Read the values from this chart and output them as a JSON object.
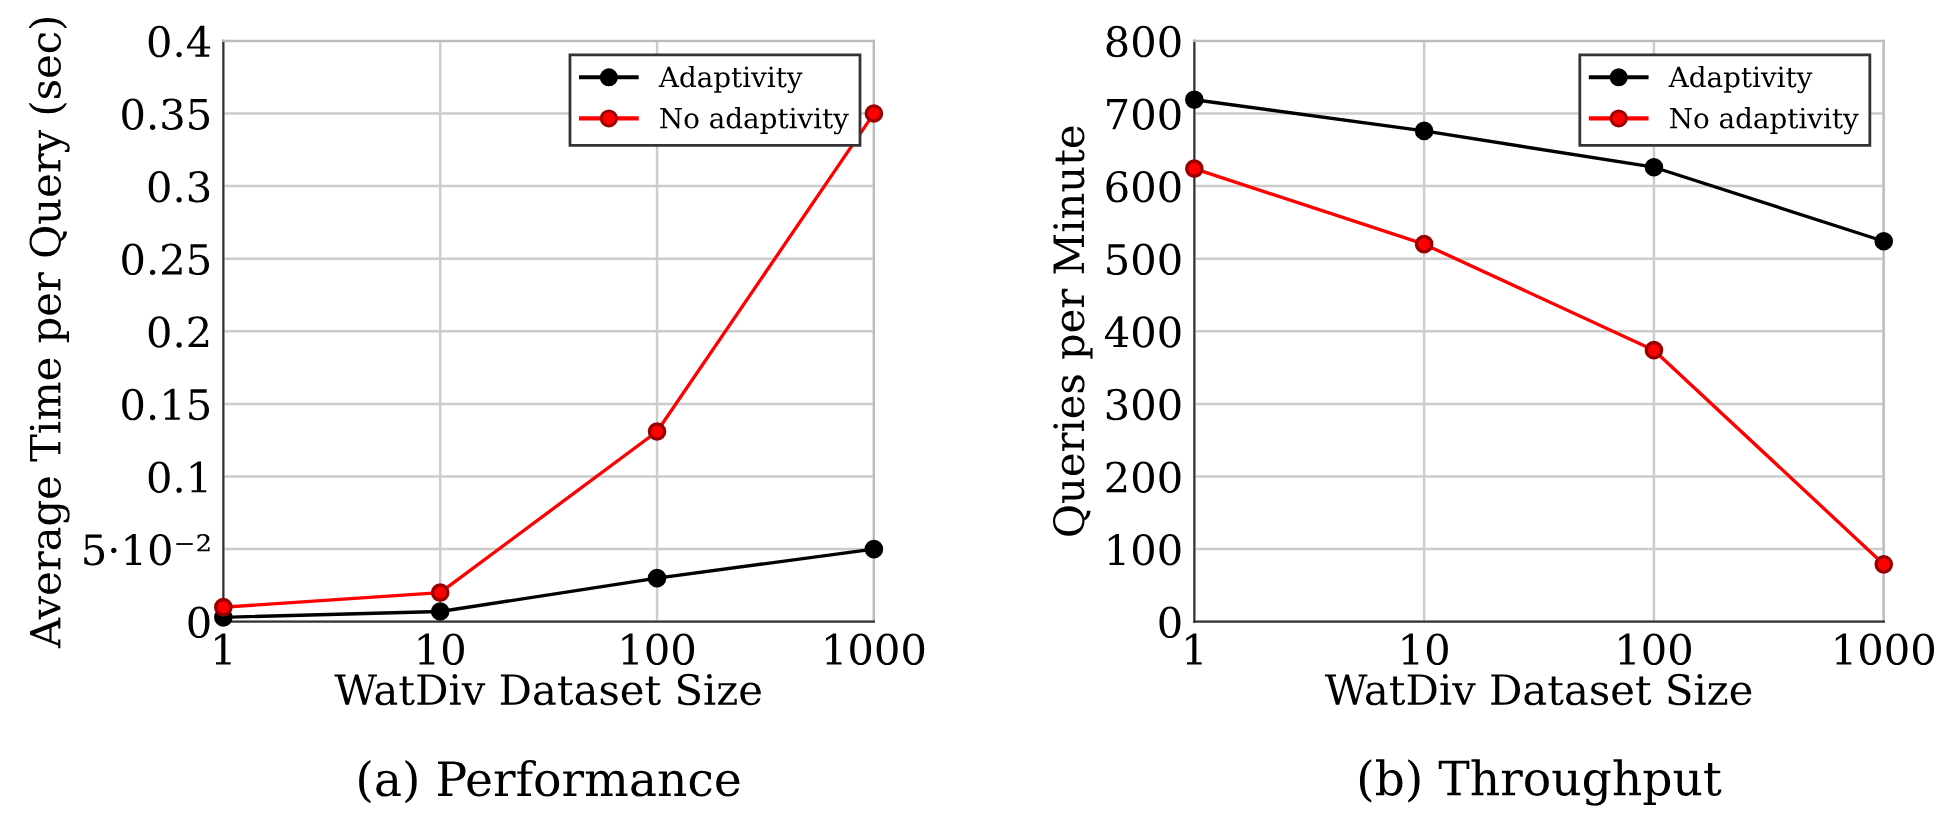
{
  "chart_data": [
    {
      "type": "line",
      "title": "(a) Performance",
      "xlabel": "WatDiv Dataset Size",
      "ylabel": "Average Time per Query (sec)",
      "x": [
        1,
        10,
        100,
        1000
      ],
      "log": "x",
      "xlim": [
        1,
        1000
      ],
      "xticks": [
        1,
        10,
        100,
        1000
      ],
      "ylim": [
        0,
        0.4
      ],
      "yticks": [
        0,
        {
          "value": 0.05,
          "label": "5·10⁻²"
        },
        0.1,
        0.15,
        0.2,
        0.25,
        0.3,
        0.35,
        0.4
      ],
      "grid": true,
      "legend": "top right",
      "marker": "circle",
      "line_style": "solid",
      "series": [
        {
          "name": "Adaptivity",
          "color": "#000000",
          "values": [
            0.003,
            0.007,
            0.03,
            0.05
          ]
        },
        {
          "name": "No adaptivity",
          "color": "#ff0000",
          "values": [
            0.01,
            0.02,
            0.131,
            0.35
          ]
        }
      ]
    },
    {
      "type": "line",
      "title": "(b) Throughput",
      "xlabel": "WatDiv Dataset Size",
      "ylabel": "Queries per Minute",
      "x": [
        1,
        10,
        100,
        1000
      ],
      "log": "x",
      "xlim": [
        1,
        1000
      ],
      "xticks": [
        1,
        10,
        100,
        1000
      ],
      "ylim": [
        0,
        800
      ],
      "yticks": [
        0,
        100,
        200,
        300,
        400,
        500,
        600,
        700,
        800
      ],
      "grid": true,
      "legend": "top right",
      "marker": "circle",
      "line_style": "solid",
      "series": [
        {
          "name": "Adaptivity",
          "color": "#000000",
          "values": [
            719,
            676,
            626,
            524
          ]
        },
        {
          "name": "No adaptivity",
          "color": "#ff0000",
          "values": [
            624,
            520,
            374,
            79
          ]
        }
      ]
    }
  ]
}
